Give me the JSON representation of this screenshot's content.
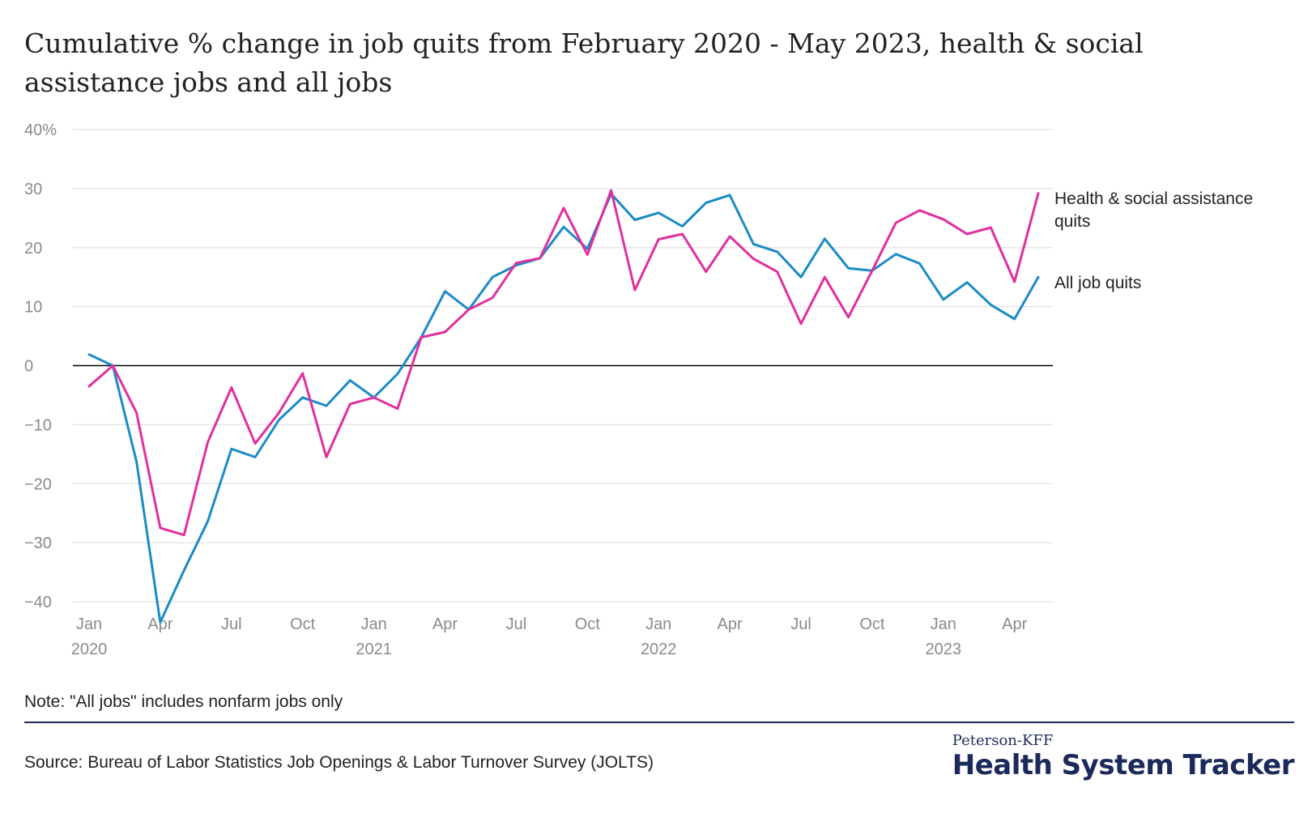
{
  "chart_data": {
    "type": "line",
    "title": "Cumulative % change in job quits from February 2020 - May 2023, health & social assistance jobs and all jobs",
    "xlabel": "",
    "ylabel": "",
    "ylim": [
      -40,
      40
    ],
    "y_ticks": [
      40,
      30,
      20,
      10,
      0,
      -10,
      -20,
      -30,
      -40
    ],
    "y_tick_labels": [
      "40%",
      "30",
      "20",
      "10",
      "0",
      "−10",
      "−20",
      "−30",
      "−40"
    ],
    "x_ticks": [
      {
        "x": "2020-01",
        "month": "Jan",
        "year": "2020"
      },
      {
        "x": "2020-04",
        "month": "Apr",
        "year": ""
      },
      {
        "x": "2020-07",
        "month": "Jul",
        "year": ""
      },
      {
        "x": "2020-10",
        "month": "Oct",
        "year": ""
      },
      {
        "x": "2021-01",
        "month": "Jan",
        "year": "2021"
      },
      {
        "x": "2021-04",
        "month": "Apr",
        "year": ""
      },
      {
        "x": "2021-07",
        "month": "Jul",
        "year": ""
      },
      {
        "x": "2021-10",
        "month": "Oct",
        "year": ""
      },
      {
        "x": "2022-01",
        "month": "Jan",
        "year": "2022"
      },
      {
        "x": "2022-04",
        "month": "Apr",
        "year": ""
      },
      {
        "x": "2022-07",
        "month": "Jul",
        "year": ""
      },
      {
        "x": "2022-10",
        "month": "Oct",
        "year": ""
      },
      {
        "x": "2023-01",
        "month": "Jan",
        "year": "2023"
      },
      {
        "x": "2023-04",
        "month": "Apr",
        "year": ""
      }
    ],
    "x": [
      "2020-01",
      "2020-02",
      "2020-03",
      "2020-04",
      "2020-05",
      "2020-06",
      "2020-07",
      "2020-08",
      "2020-09",
      "2020-10",
      "2020-11",
      "2020-12",
      "2021-01",
      "2021-02",
      "2021-03",
      "2021-04",
      "2021-05",
      "2021-06",
      "2021-07",
      "2021-08",
      "2021-09",
      "2021-10",
      "2021-11",
      "2021-12",
      "2022-01",
      "2022-02",
      "2022-03",
      "2022-04",
      "2022-05",
      "2022-06",
      "2022-07",
      "2022-08",
      "2022-09",
      "2022-10",
      "2022-11",
      "2022-12",
      "2023-01",
      "2023-02",
      "2023-03",
      "2023-04",
      "2023-05"
    ],
    "grid": true,
    "series": [
      {
        "name": "Health & social assistance quits",
        "label_lines": [
          "Health & social assistance",
          "quits"
        ],
        "color": "#e0309e",
        "values": [
          -3.5,
          0,
          -8,
          -27.5,
          -28.7,
          -13,
          -3.7,
          -13.2,
          -8,
          -1.3,
          -15.5,
          -6.5,
          -5.4,
          -7.3,
          4.8,
          5.7,
          9.5,
          11.5,
          17.4,
          18.2,
          26.7,
          18.8,
          29.7,
          12.8,
          21.4,
          22.3,
          15.9,
          21.9,
          18.1,
          15.9,
          7.1,
          15,
          8.2,
          16.1,
          24.2,
          26.3,
          24.8,
          22.3,
          23.4,
          14.2,
          29.2
        ]
      },
      {
        "name": "All job quits",
        "label_lines": [
          "All job quits"
        ],
        "color": "#1b8bc6",
        "values": [
          1.9,
          0,
          -16.3,
          -43.5,
          -34.7,
          -26.4,
          -14.1,
          -15.5,
          -9.2,
          -5.4,
          -6.8,
          -2.5,
          -5.4,
          -1.4,
          4.8,
          12.6,
          9.5,
          15,
          17,
          18.2,
          23.5,
          19.8,
          29.1,
          24.7,
          25.9,
          23.6,
          27.6,
          28.9,
          20.6,
          19.3,
          15,
          21.5,
          16.5,
          16.1,
          18.9,
          17.3,
          11.2,
          14.1,
          10.3,
          7.9,
          15
        ]
      }
    ],
    "legend": "right-of-lines"
  },
  "note": "Note: \"All jobs\" includes nonfarm jobs only",
  "source": "Source: Bureau of Labor Statistics Job Openings & Labor Turnover Survey (JOLTS)",
  "brand": {
    "top": "Peterson-KFF",
    "main": "Health System Tracker",
    "color": "#1b2a5a"
  }
}
